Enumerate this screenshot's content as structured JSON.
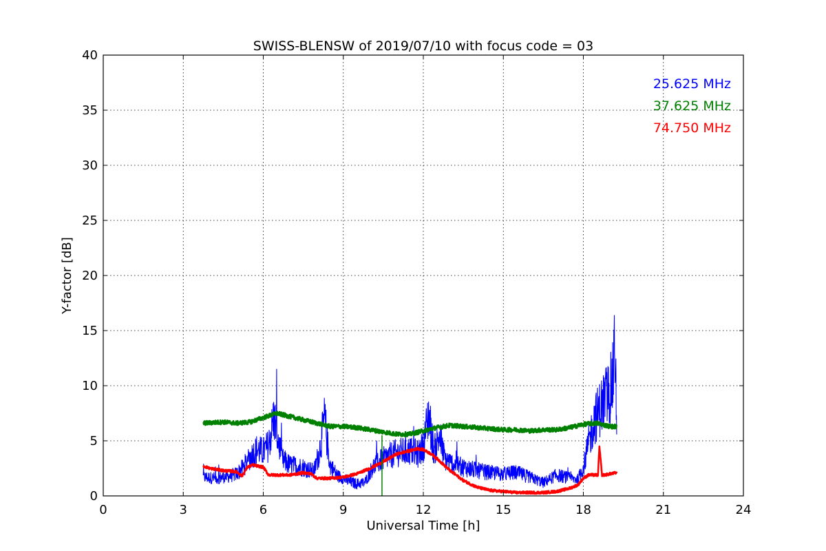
{
  "chart_data": {
    "type": "line",
    "title": "SWISS-BLENSW of 2019/07/10 with focus code = 03",
    "xlabel": "Universal Time [h]",
    "ylabel": "Y-factor [dB]",
    "xlim": [
      0,
      24
    ],
    "ylim": [
      0,
      40
    ],
    "xticks": [
      "0",
      "3",
      "6",
      "9",
      "12",
      "15",
      "18",
      "21",
      "24"
    ],
    "yticks": [
      "0",
      "5",
      "10",
      "15",
      "20",
      "25",
      "30",
      "35",
      "40"
    ],
    "grid": true,
    "legend_position": "top-right",
    "series": [
      {
        "name": "25.625 MHz",
        "color": "#0000ff",
        "x": [
          3.75,
          4.25,
          4.75,
          5.0,
          5.25,
          5.5,
          5.75,
          6.0,
          6.2,
          6.4,
          6.7,
          7.0,
          7.5,
          7.9,
          8.1,
          8.3,
          8.5,
          8.8,
          9.0,
          9.2,
          9.5,
          9.8,
          10.1,
          10.4,
          10.7,
          11.0,
          11.5,
          11.8,
          12.0,
          12.2,
          12.4,
          12.6,
          12.8,
          13.0,
          13.5,
          14.0,
          14.5,
          15.0,
          15.5,
          16.0,
          16.5,
          17.0,
          17.5,
          17.8,
          18.0,
          18.2,
          18.4,
          18.6,
          18.8,
          19.0,
          19.1,
          19.2,
          19.25
        ],
        "y": [
          1.7,
          1.6,
          1.8,
          2.0,
          2.6,
          3.5,
          4.2,
          4.0,
          4.6,
          7.2,
          3.3,
          2.8,
          2.6,
          2.2,
          4.0,
          7.0,
          2.8,
          1.8,
          1.6,
          1.3,
          1.1,
          1.2,
          2.6,
          3.2,
          3.6,
          3.9,
          4.1,
          3.8,
          4.5,
          7.5,
          4.0,
          5.5,
          3.4,
          3.0,
          2.6,
          2.3,
          2.1,
          2.0,
          2.1,
          1.7,
          1.2,
          1.9,
          1.6,
          1.5,
          2.6,
          4.8,
          6.8,
          7.8,
          8.8,
          9.5,
          10.5,
          14.0,
          4.8
        ]
      },
      {
        "name": "37.625 MHz",
        "color": "#008000",
        "x": [
          3.75,
          4.5,
          5.0,
          5.5,
          6.0,
          6.5,
          7.0,
          7.5,
          8.0,
          8.5,
          9.0,
          9.5,
          10.0,
          10.5,
          11.0,
          11.5,
          12.0,
          12.5,
          13.0,
          13.5,
          14.0,
          14.5,
          15.0,
          15.5,
          16.0,
          16.5,
          17.0,
          17.5,
          18.0,
          18.5,
          19.0,
          19.25
        ],
        "y": [
          6.6,
          6.7,
          6.6,
          6.7,
          7.1,
          7.5,
          7.2,
          6.9,
          6.6,
          6.3,
          6.3,
          6.2,
          6.0,
          5.8,
          5.6,
          5.6,
          5.9,
          6.2,
          6.4,
          6.3,
          6.2,
          6.1,
          6.0,
          6.0,
          5.9,
          6.0,
          6.0,
          6.2,
          6.5,
          6.6,
          6.3,
          6.3
        ]
      },
      {
        "name": "74.750 MHz",
        "color": "#ff0000",
        "x": [
          3.75,
          4.0,
          4.5,
          5.0,
          5.2,
          5.4,
          5.6,
          5.8,
          6.0,
          6.2,
          6.5,
          7.0,
          7.5,
          7.8,
          8.0,
          8.5,
          9.0,
          9.5,
          10.0,
          10.5,
          11.0,
          11.5,
          11.8,
          12.0,
          12.3,
          12.6,
          13.0,
          13.5,
          14.0,
          14.5,
          15.0,
          15.5,
          16.0,
          16.5,
          17.0,
          17.5,
          17.8,
          18.0,
          18.2,
          18.4,
          18.55,
          18.6,
          18.7,
          18.8,
          19.0,
          19.25
        ],
        "y": [
          2.7,
          2.5,
          2.3,
          2.2,
          1.8,
          2.6,
          2.8,
          2.7,
          2.6,
          1.9,
          1.9,
          1.9,
          2.1,
          2.0,
          1.6,
          1.6,
          1.7,
          2.0,
          2.5,
          3.1,
          3.8,
          4.1,
          4.3,
          4.2,
          3.8,
          3.2,
          2.3,
          1.4,
          0.8,
          0.5,
          0.4,
          0.3,
          0.3,
          0.3,
          0.4,
          0.7,
          1.0,
          1.6,
          1.9,
          1.9,
          1.9,
          4.5,
          1.9,
          1.9,
          2.0,
          2.1
        ]
      }
    ],
    "annotations": [
      {
        "type": "vertical-line",
        "x": 10.45,
        "y_from": 0,
        "y_to": 5.5,
        "color": "#008000"
      }
    ]
  }
}
